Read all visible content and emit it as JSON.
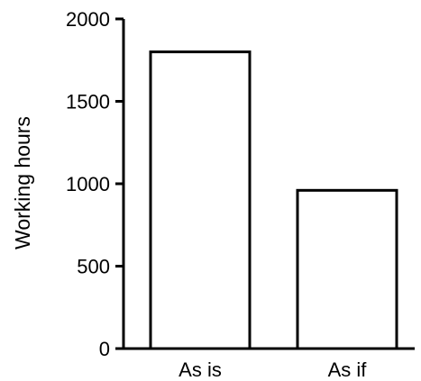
{
  "chart_data": {
    "type": "bar",
    "categories": [
      "As is",
      "As if"
    ],
    "values": [
      1800,
      960
    ],
    "ylabel": "Working hours",
    "ylim": [
      0,
      2000
    ],
    "yticks": [
      0,
      500,
      1000,
      1500,
      2000
    ],
    "grid": false,
    "bar_fill": "#ffffff",
    "bar_stroke": "#000000",
    "axis_color": "#000000"
  }
}
